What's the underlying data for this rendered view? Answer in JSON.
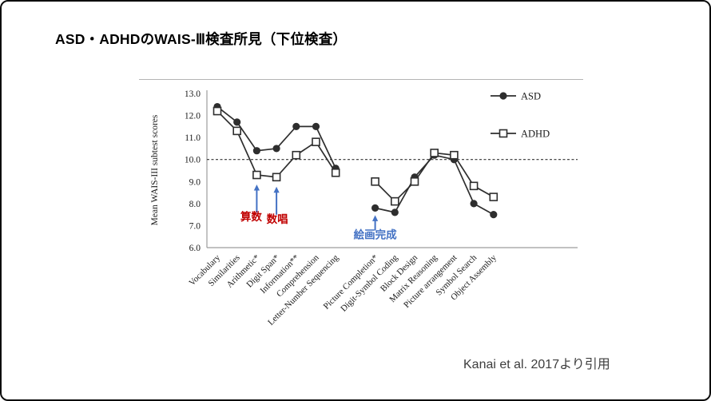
{
  "slide": {
    "title": "ASD・ADHDのWAIS-Ⅲ検査所見（下位検査）",
    "citation": "Kanai et al. 2017より引用"
  },
  "colors": {
    "chart_line": "#2e2e2e",
    "annotation_red": "#c00000",
    "annotation_blue": "#4472c4",
    "reference_line": "#333333",
    "top_border": "#b5b5b5"
  },
  "chart_data": {
    "type": "line",
    "title": "",
    "xlabel": "",
    "ylabel": "Mean WAIS-III subtest scores",
    "ylim": [
      6.0,
      13.0
    ],
    "yticks": [
      "13.0",
      "12.0",
      "11.0",
      "10.0",
      "9.0",
      "8.0",
      "7.0",
      "6.0"
    ],
    "reference_line": 10.0,
    "grid": false,
    "legend_position": "top-right",
    "categories": [
      "Vocabulary",
      "Similarities",
      "Arithmetic*",
      "Digit Span*",
      "Information**",
      "Comprehension",
      "Letter-Number Sequencing",
      "",
      "Picture Completion*",
      "Digit-Symbol Coding",
      "Block Design",
      "Matrix Reasoning",
      "Picture arrangement",
      "Symbol Search",
      "Object Assembly"
    ],
    "series": [
      {
        "name": "ASD",
        "marker": "filled-circle",
        "values": [
          12.4,
          11.7,
          10.4,
          10.5,
          11.5,
          11.5,
          9.6,
          null,
          7.8,
          7.6,
          9.2,
          10.2,
          10.0,
          8.0,
          7.5
        ]
      },
      {
        "name": "ADHD",
        "marker": "open-square",
        "values": [
          12.2,
          11.3,
          9.3,
          9.2,
          10.2,
          10.8,
          9.4,
          null,
          9.0,
          8.1,
          9.0,
          10.3,
          10.2,
          8.8,
          8.3
        ]
      }
    ],
    "annotations": [
      {
        "text": "算数",
        "color": "#c00000",
        "arrow_color": "#4472c4",
        "category_index": 2,
        "points_to_series": "ADHD"
      },
      {
        "text": "数唱",
        "color": "#c00000",
        "arrow_color": "#4472c4",
        "category_index": 3,
        "points_to_series": "ADHD"
      },
      {
        "text": "絵画完成",
        "color": "#4472c4",
        "arrow_color": "#4472c4",
        "category_index": 8,
        "points_to_series": "ASD"
      }
    ]
  }
}
